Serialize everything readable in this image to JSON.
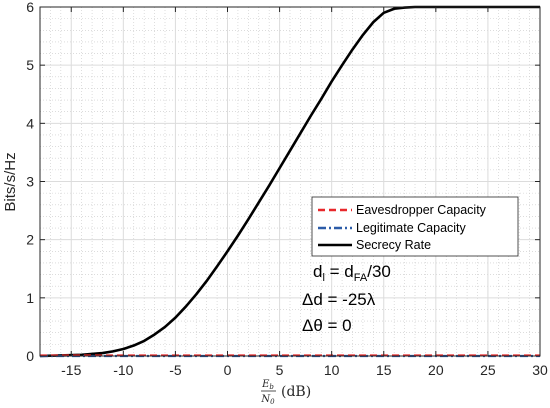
{
  "chart_data": {
    "type": "line",
    "xlabel_parts": {
      "numerator": "E",
      "numerator_sub": "b",
      "denominator": "N",
      "denominator_sub": "0",
      "suffix": "(dB)"
    },
    "ylabel": "Bits/s/Hz",
    "xlim": [
      -18,
      30
    ],
    "ylim": [
      0,
      6
    ],
    "x_ticks": [
      -15,
      -10,
      -5,
      0,
      5,
      10,
      15,
      20,
      25,
      30
    ],
    "y_ticks": [
      0,
      1,
      2,
      3,
      4,
      5,
      6
    ],
    "x_tick_labels": [
      "-15",
      "-10",
      "-5",
      "0",
      "5",
      "10",
      "15",
      "20",
      "25",
      "30"
    ],
    "y_tick_labels": [
      "0",
      "1",
      "2",
      "3",
      "4",
      "5",
      "6"
    ],
    "grid": true,
    "minor_grid": true,
    "legend_position": "center-right",
    "series": [
      {
        "name": "Eavesdropper Capacity",
        "color": "#e8282b",
        "style": "dashed",
        "x": [
          -18,
          -15,
          -12,
          -9,
          -6,
          -3,
          0,
          3,
          6,
          9,
          12,
          15,
          18,
          21,
          24,
          27,
          30
        ],
        "y": [
          0.01,
          0.01,
          0.01,
          0.01,
          0.01,
          0.01,
          0.01,
          0.01,
          0.01,
          0.01,
          0.01,
          0.01,
          0.01,
          0.01,
          0.01,
          0.01,
          0.01
        ]
      },
      {
        "name": "Legitimate Capacity",
        "color": "#2c5ca8",
        "style": "dashdot",
        "x": [
          -18,
          -15,
          -12,
          -9,
          -6,
          -3,
          0,
          3,
          6,
          9,
          12,
          15,
          18,
          21,
          24,
          27,
          30
        ],
        "y": [
          0.0,
          0.0,
          0.0,
          0.0,
          0.0,
          0.0,
          0.0,
          0.0,
          0.0,
          0.0,
          0.0,
          0.0,
          0.0,
          0.0,
          0.0,
          0.0,
          0.0
        ]
      },
      {
        "name": "Secrecy Rate",
        "color": "#000000",
        "style": "solid",
        "x": [
          -18,
          -16,
          -14,
          -12,
          -11,
          -10,
          -9,
          -8,
          -7,
          -6,
          -5,
          -4,
          -3,
          -2,
          -1,
          0,
          1,
          2,
          3,
          4,
          5,
          6,
          7,
          8,
          9,
          10,
          11,
          12,
          13,
          14,
          15,
          16,
          17,
          18,
          20,
          22,
          25,
          30
        ],
        "y": [
          0.0,
          0.01,
          0.02,
          0.05,
          0.08,
          0.12,
          0.18,
          0.26,
          0.37,
          0.5,
          0.66,
          0.85,
          1.06,
          1.29,
          1.54,
          1.8,
          2.07,
          2.35,
          2.64,
          2.93,
          3.23,
          3.53,
          3.83,
          4.13,
          4.42,
          4.72,
          5.0,
          5.27,
          5.52,
          5.74,
          5.9,
          5.97,
          5.99,
          6.0,
          6.0,
          6.0,
          6.0,
          6.0
        ]
      }
    ],
    "annotations": {
      "line1_main": "d",
      "line1_sub": "l",
      "line1_mid": " = d",
      "line1_sub2": "FA",
      "line1_end": "/30",
      "line2": "Δd = -25λ",
      "line3": "Δθ = 0"
    }
  }
}
